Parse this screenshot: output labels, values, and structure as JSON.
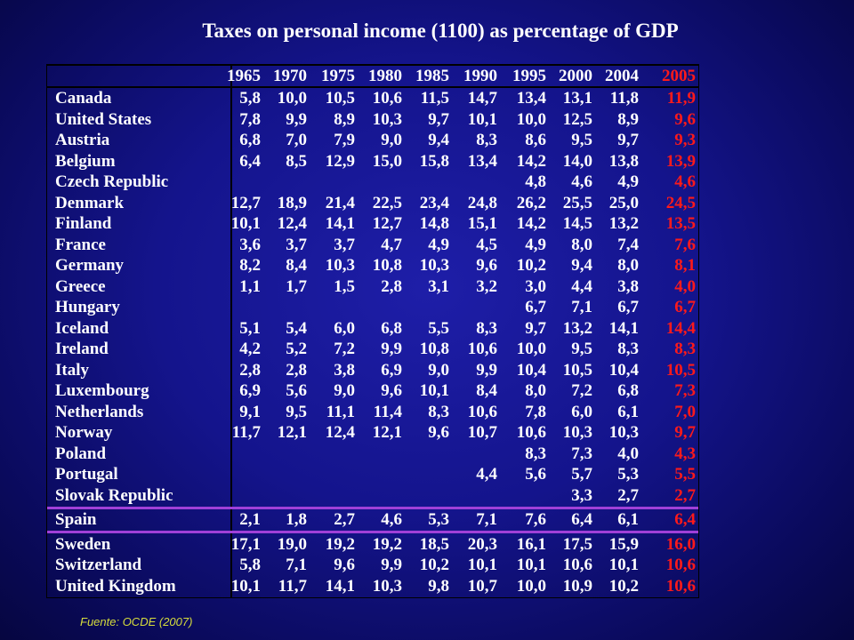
{
  "title": "Taxes on personal income (1100) as percentage of GDP",
  "source": "Fuente: OCDE (2007)",
  "colors": {
    "highlight": "#ff1a1a",
    "text": "#ffffff",
    "separator": "#a040d8",
    "background": "#14148c"
  },
  "years": [
    "1965",
    "1970",
    "1975",
    "1980",
    "1985",
    "1990",
    "1995",
    "2000",
    "2004",
    "2005"
  ],
  "rows": [
    {
      "country": "Canada",
      "values": [
        "5,8",
        "10,0",
        "10,5",
        "10,6",
        "11,5",
        "14,7",
        "13,4",
        "13,1",
        "11,8",
        "11,9"
      ]
    },
    {
      "country": "United States",
      "values": [
        "7,8",
        "9,9",
        "8,9",
        "10,3",
        "9,7",
        "10,1",
        "10,0",
        "12,5",
        "8,9",
        "9,6"
      ]
    },
    {
      "country": "Austria",
      "values": [
        "6,8",
        "7,0",
        "7,9",
        "9,0",
        "9,4",
        "8,3",
        "8,6",
        "9,5",
        "9,7",
        "9,3"
      ]
    },
    {
      "country": "Belgium",
      "values": [
        "6,4",
        "8,5",
        "12,9",
        "15,0",
        "15,8",
        "13,4",
        "14,2",
        "14,0",
        "13,8",
        "13,9"
      ]
    },
    {
      "country": "Czech Republic",
      "values": [
        "",
        "",
        "",
        "",
        "",
        "",
        "4,8",
        "4,6",
        "4,9",
        "4,6"
      ]
    },
    {
      "country": "Denmark",
      "values": [
        "12,7",
        "18,9",
        "21,4",
        "22,5",
        "23,4",
        "24,8",
        "26,2",
        "25,5",
        "25,0",
        "24,5"
      ]
    },
    {
      "country": "Finland",
      "values": [
        "10,1",
        "12,4",
        "14,1",
        "12,7",
        "14,8",
        "15,1",
        "14,2",
        "14,5",
        "13,2",
        "13,5"
      ]
    },
    {
      "country": "France",
      "values": [
        "3,6",
        "3,7",
        "3,7",
        "4,7",
        "4,9",
        "4,5",
        "4,9",
        "8,0",
        "7,4",
        "7,6"
      ]
    },
    {
      "country": "Germany",
      "values": [
        "8,2",
        "8,4",
        "10,3",
        "10,8",
        "10,3",
        "9,6",
        "10,2",
        "9,4",
        "8,0",
        "8,1"
      ]
    },
    {
      "country": "Greece",
      "values": [
        "1,1",
        "1,7",
        "1,5",
        "2,8",
        "3,1",
        "3,2",
        "3,0",
        "4,4",
        "3,8",
        "4,0"
      ]
    },
    {
      "country": "Hungary",
      "values": [
        "",
        "",
        "",
        "",
        "",
        "",
        "6,7",
        "7,1",
        "6,7",
        "6,7"
      ]
    },
    {
      "country": "Iceland",
      "values": [
        "5,1",
        "5,4",
        "6,0",
        "6,8",
        "5,5",
        "8,3",
        "9,7",
        "13,2",
        "14,1",
        "14,4"
      ]
    },
    {
      "country": "Ireland",
      "values": [
        "4,2",
        "5,2",
        "7,2",
        "9,9",
        "10,8",
        "10,6",
        "10,0",
        "9,5",
        "8,3",
        "8,3"
      ]
    },
    {
      "country": "Italy",
      "values": [
        "2,8",
        "2,8",
        "3,8",
        "6,9",
        "9,0",
        "9,9",
        "10,4",
        "10,5",
        "10,4",
        "10,5"
      ]
    },
    {
      "country": "Luxembourg",
      "values": [
        "6,9",
        "5,6",
        "9,0",
        "9,6",
        "10,1",
        "8,4",
        "8,0",
        "7,2",
        "6,8",
        "7,3"
      ]
    },
    {
      "country": "Netherlands",
      "values": [
        "9,1",
        "9,5",
        "11,1",
        "11,4",
        "8,3",
        "10,6",
        "7,8",
        "6,0",
        "6,1",
        "7,0"
      ]
    },
    {
      "country": "Norway",
      "values": [
        "11,7",
        "12,1",
        "12,4",
        "12,1",
        "9,6",
        "10,7",
        "10,6",
        "10,3",
        "10,3",
        "9,7"
      ]
    },
    {
      "country": "Poland",
      "values": [
        "",
        "",
        "",
        "",
        "",
        "",
        "8,3",
        "7,3",
        "4,0",
        "4,3"
      ]
    },
    {
      "country": "Portugal",
      "values": [
        "",
        "",
        "",
        "",
        "",
        "4,4",
        "5,6",
        "5,7",
        "5,3",
        "5,5"
      ]
    },
    {
      "country": "Slovak Republic",
      "values": [
        "",
        "",
        "",
        "",
        "",
        "",
        "",
        "3,3",
        "2,7",
        "2,7"
      ]
    },
    {
      "country": "Spain",
      "values": [
        "2,1",
        "1,8",
        "2,7",
        "4,6",
        "5,3",
        "7,1",
        "7,6",
        "6,4",
        "6,1",
        "6,4"
      ]
    },
    {
      "country": "Sweden",
      "values": [
        "17,1",
        "19,0",
        "19,2",
        "19,2",
        "18,5",
        "20,3",
        "16,1",
        "17,5",
        "15,9",
        "16,0"
      ]
    },
    {
      "country": "Switzerland",
      "values": [
        "5,8",
        "7,1",
        "9,6",
        "9,9",
        "10,2",
        "10,1",
        "10,1",
        "10,6",
        "10,1",
        "10,6"
      ]
    },
    {
      "country": "United Kingdom",
      "values": [
        "10,1",
        "11,7",
        "14,1",
        "10,3",
        "9,8",
        "10,7",
        "10,0",
        "10,9",
        "10,2",
        "10,6"
      ]
    }
  ]
}
